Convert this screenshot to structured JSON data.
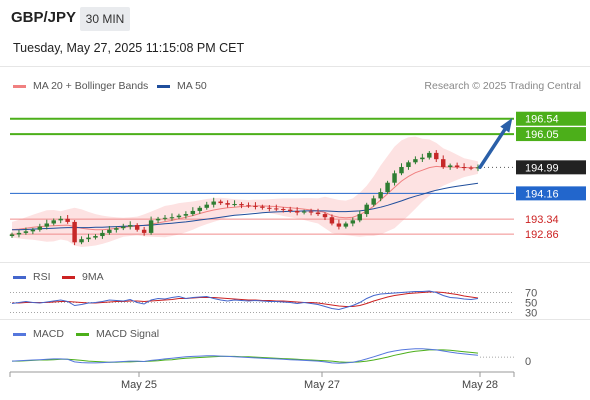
{
  "header": {
    "pair": "GBP/JPY",
    "interval": "30 MIN",
    "datetime": "Tuesday, May 27, 2025 11:15:08 PM CET",
    "attribution": "Research © 2025 Trading Central"
  },
  "colors": {
    "up_candle": "#2e7d32",
    "down_candle": "#c62828",
    "bollinger_fill": "#fde2e2",
    "ma20": "#f08080",
    "ma50": "#1f4e9c",
    "target_green": "#4caf1a",
    "support_red": "#f08c8c",
    "pivot_blue": "#2266cc",
    "arrow": "#2a5fa8",
    "rsi": "#4466cc",
    "rsi_ma": "#cc2222",
    "macd": "#5577dd",
    "macd_signal": "#4caf1a"
  },
  "chart_data": [
    {
      "type": "candlestick",
      "name": "price",
      "legend": [
        {
          "label": "MA 20 + Bollinger Bands",
          "color": "#f08080"
        },
        {
          "label": "MA 50",
          "color": "#1f4e9c"
        }
      ],
      "x_ticks": [
        "May 25",
        "May 27",
        "May 28"
      ],
      "ylim": [
        192.1,
        197.2
      ],
      "levels": [
        {
          "value": 196.54,
          "label": "196.54",
          "kind": "target"
        },
        {
          "value": 196.05,
          "label": "196.05",
          "kind": "target"
        },
        {
          "value": 194.99,
          "label": "194.99",
          "kind": "last"
        },
        {
          "value": 194.16,
          "label": "194.16",
          "kind": "pivot"
        },
        {
          "value": 193.34,
          "label": "193.34",
          "kind": "support"
        },
        {
          "value": 192.86,
          "label": "192.86",
          "kind": "support"
        }
      ],
      "price_path": [
        192.85,
        192.9,
        192.95,
        193.0,
        193.1,
        193.2,
        193.3,
        193.35,
        193.25,
        192.6,
        192.7,
        192.75,
        192.8,
        192.9,
        193.0,
        193.05,
        193.1,
        193.15,
        193.0,
        192.9,
        193.3,
        193.35,
        193.38,
        193.4,
        193.45,
        193.5,
        193.6,
        193.7,
        193.8,
        193.9,
        193.85,
        193.8,
        193.82,
        193.78,
        193.76,
        193.74,
        193.7,
        193.68,
        193.66,
        193.64,
        193.6,
        193.55,
        193.58,
        193.55,
        193.5,
        193.4,
        193.2,
        193.1,
        193.2,
        193.3,
        193.5,
        193.8,
        194.0,
        194.2,
        194.5,
        194.8,
        195.0,
        195.15,
        195.25,
        195.3,
        195.45,
        195.25,
        195.0,
        195.05,
        195.0,
        194.98,
        194.96,
        194.99
      ],
      "ma20_path": [
        193.0,
        193.02,
        193.05,
        193.08,
        193.1,
        193.12,
        193.13,
        193.14,
        193.15,
        193.1,
        193.05,
        193.02,
        193.0,
        193.0,
        193.02,
        193.05,
        193.08,
        193.1,
        193.12,
        193.14,
        193.18,
        193.22,
        193.26,
        193.3,
        193.35,
        193.4,
        193.45,
        193.52,
        193.58,
        193.63,
        193.67,
        193.7,
        193.72,
        193.74,
        193.75,
        193.76,
        193.76,
        193.75,
        193.74,
        193.72,
        193.7,
        193.68,
        193.66,
        193.63,
        193.6,
        193.55,
        193.45,
        193.4,
        193.38,
        193.4,
        193.48,
        193.6,
        193.75,
        193.95,
        194.15,
        194.35,
        194.55,
        194.7,
        194.82,
        194.9,
        194.98,
        195.02,
        195.0,
        195.0,
        194.99,
        194.98,
        194.98,
        194.98
      ],
      "ma50_path": [
        193.0,
        193.0,
        193.01,
        193.02,
        193.03,
        193.04,
        193.05,
        193.06,
        193.07,
        193.07,
        193.07,
        193.07,
        193.08,
        193.08,
        193.09,
        193.1,
        193.11,
        193.12,
        193.13,
        193.14,
        193.15,
        193.17,
        193.19,
        193.21,
        193.23,
        193.25,
        193.28,
        193.31,
        193.34,
        193.37,
        193.4,
        193.43,
        193.46,
        193.48,
        193.5,
        193.52,
        193.54,
        193.56,
        193.57,
        193.58,
        193.59,
        193.59,
        193.6,
        193.6,
        193.6,
        193.6,
        193.59,
        193.58,
        193.58,
        193.59,
        193.6,
        193.63,
        193.67,
        193.72,
        193.78,
        193.85,
        193.92,
        194.0,
        194.07,
        194.13,
        194.2,
        194.26,
        194.31,
        194.35,
        194.39,
        194.42,
        194.45,
        194.48
      ],
      "bb_width_path": [
        0.25,
        0.3,
        0.35,
        0.4,
        0.45,
        0.5,
        0.5,
        0.45,
        0.5,
        0.6,
        0.6,
        0.55,
        0.5,
        0.45,
        0.4,
        0.35,
        0.3,
        0.3,
        0.3,
        0.35,
        0.4,
        0.45,
        0.5,
        0.5,
        0.5,
        0.48,
        0.45,
        0.42,
        0.4,
        0.38,
        0.35,
        0.3,
        0.25,
        0.22,
        0.2,
        0.2,
        0.2,
        0.22,
        0.25,
        0.28,
        0.3,
        0.32,
        0.35,
        0.38,
        0.4,
        0.5,
        0.55,
        0.55,
        0.55,
        0.6,
        0.7,
        0.8,
        0.95,
        1.1,
        1.2,
        1.3,
        1.3,
        1.25,
        1.15,
        1.0,
        0.9,
        0.75,
        0.6,
        0.5,
        0.4,
        0.3,
        0.25,
        0.2
      ]
    },
    {
      "type": "line",
      "name": "rsi",
      "legend": [
        {
          "label": "RSI",
          "color": "#4466cc"
        },
        {
          "label": "9MA",
          "color": "#cc2222"
        }
      ],
      "ylim": [
        25,
        75
      ],
      "levels": [
        {
          "value": 70,
          "label": "70"
        },
        {
          "value": 50,
          "label": "50"
        },
        {
          "value": 30,
          "label": "30"
        }
      ],
      "series": [
        {
          "name": "RSI",
          "values": [
            48,
            50,
            52,
            50,
            49,
            51,
            53,
            55,
            52,
            44,
            46,
            49,
            50,
            52,
            55,
            54,
            53,
            56,
            50,
            47,
            55,
            58,
            57,
            60,
            62,
            58,
            60,
            61,
            62,
            58,
            55,
            53,
            55,
            54,
            53,
            54,
            53,
            52,
            52,
            51,
            50,
            48,
            50,
            48,
            46,
            42,
            38,
            36,
            40,
            44,
            50,
            58,
            64,
            67,
            68,
            69,
            70,
            71,
            72,
            72,
            73,
            70,
            64,
            60,
            59,
            57,
            56,
            58
          ]
        },
        {
          "name": "9MA",
          "values": [
            49,
            49,
            50,
            50,
            50,
            50,
            51,
            52,
            52,
            51,
            50,
            49,
            49,
            50,
            51,
            52,
            52,
            53,
            53,
            52,
            53,
            54,
            55,
            56,
            58,
            58,
            59,
            60,
            60,
            60,
            59,
            58,
            57,
            56,
            55,
            55,
            54,
            54,
            53,
            53,
            52,
            51,
            50,
            50,
            49,
            47,
            45,
            43,
            42,
            42,
            44,
            48,
            53,
            57,
            61,
            64,
            66,
            68,
            69,
            70,
            71,
            71,
            70,
            68,
            66,
            63,
            61,
            59
          ]
        }
      ]
    },
    {
      "type": "line",
      "name": "macd",
      "legend": [
        {
          "label": "MACD",
          "color": "#5577dd"
        },
        {
          "label": "MACD Signal",
          "color": "#4caf1a"
        }
      ],
      "ylim": [
        -0.3,
        0.5
      ],
      "levels": [
        {
          "value": 0,
          "label": "0"
        }
      ],
      "series": [
        {
          "name": "MACD",
          "values": [
            0.0,
            0.01,
            0.02,
            0.03,
            0.04,
            0.05,
            0.06,
            0.06,
            0.05,
            -0.02,
            -0.04,
            -0.05,
            -0.05,
            -0.04,
            -0.03,
            -0.02,
            -0.01,
            0.0,
            0.0,
            -0.01,
            0.02,
            0.04,
            0.06,
            0.08,
            0.1,
            0.12,
            0.13,
            0.14,
            0.15,
            0.15,
            0.14,
            0.13,
            0.12,
            0.11,
            0.1,
            0.09,
            0.08,
            0.07,
            0.06,
            0.05,
            0.04,
            0.03,
            0.02,
            0.01,
            0.0,
            -0.02,
            -0.05,
            -0.06,
            -0.05,
            -0.03,
            0.01,
            0.06,
            0.12,
            0.18,
            0.24,
            0.28,
            0.31,
            0.33,
            0.34,
            0.34,
            0.33,
            0.31,
            0.28,
            0.25,
            0.22,
            0.2,
            0.18,
            0.16
          ]
        },
        {
          "name": "MACD Signal",
          "values": [
            0.0,
            0.0,
            0.01,
            0.02,
            0.03,
            0.03,
            0.04,
            0.05,
            0.05,
            0.04,
            0.02,
            0.0,
            -0.01,
            -0.02,
            -0.03,
            -0.03,
            -0.02,
            -0.02,
            -0.01,
            -0.01,
            0.0,
            0.01,
            0.03,
            0.04,
            0.06,
            0.08,
            0.09,
            0.1,
            0.11,
            0.12,
            0.13,
            0.13,
            0.13,
            0.12,
            0.12,
            0.11,
            0.1,
            0.09,
            0.08,
            0.07,
            0.06,
            0.05,
            0.04,
            0.03,
            0.02,
            0.01,
            0.0,
            -0.02,
            -0.03,
            -0.03,
            -0.02,
            0.0,
            0.03,
            0.07,
            0.11,
            0.16,
            0.2,
            0.24,
            0.27,
            0.29,
            0.31,
            0.31,
            0.31,
            0.3,
            0.28,
            0.26,
            0.24,
            0.22
          ]
        }
      ]
    }
  ]
}
